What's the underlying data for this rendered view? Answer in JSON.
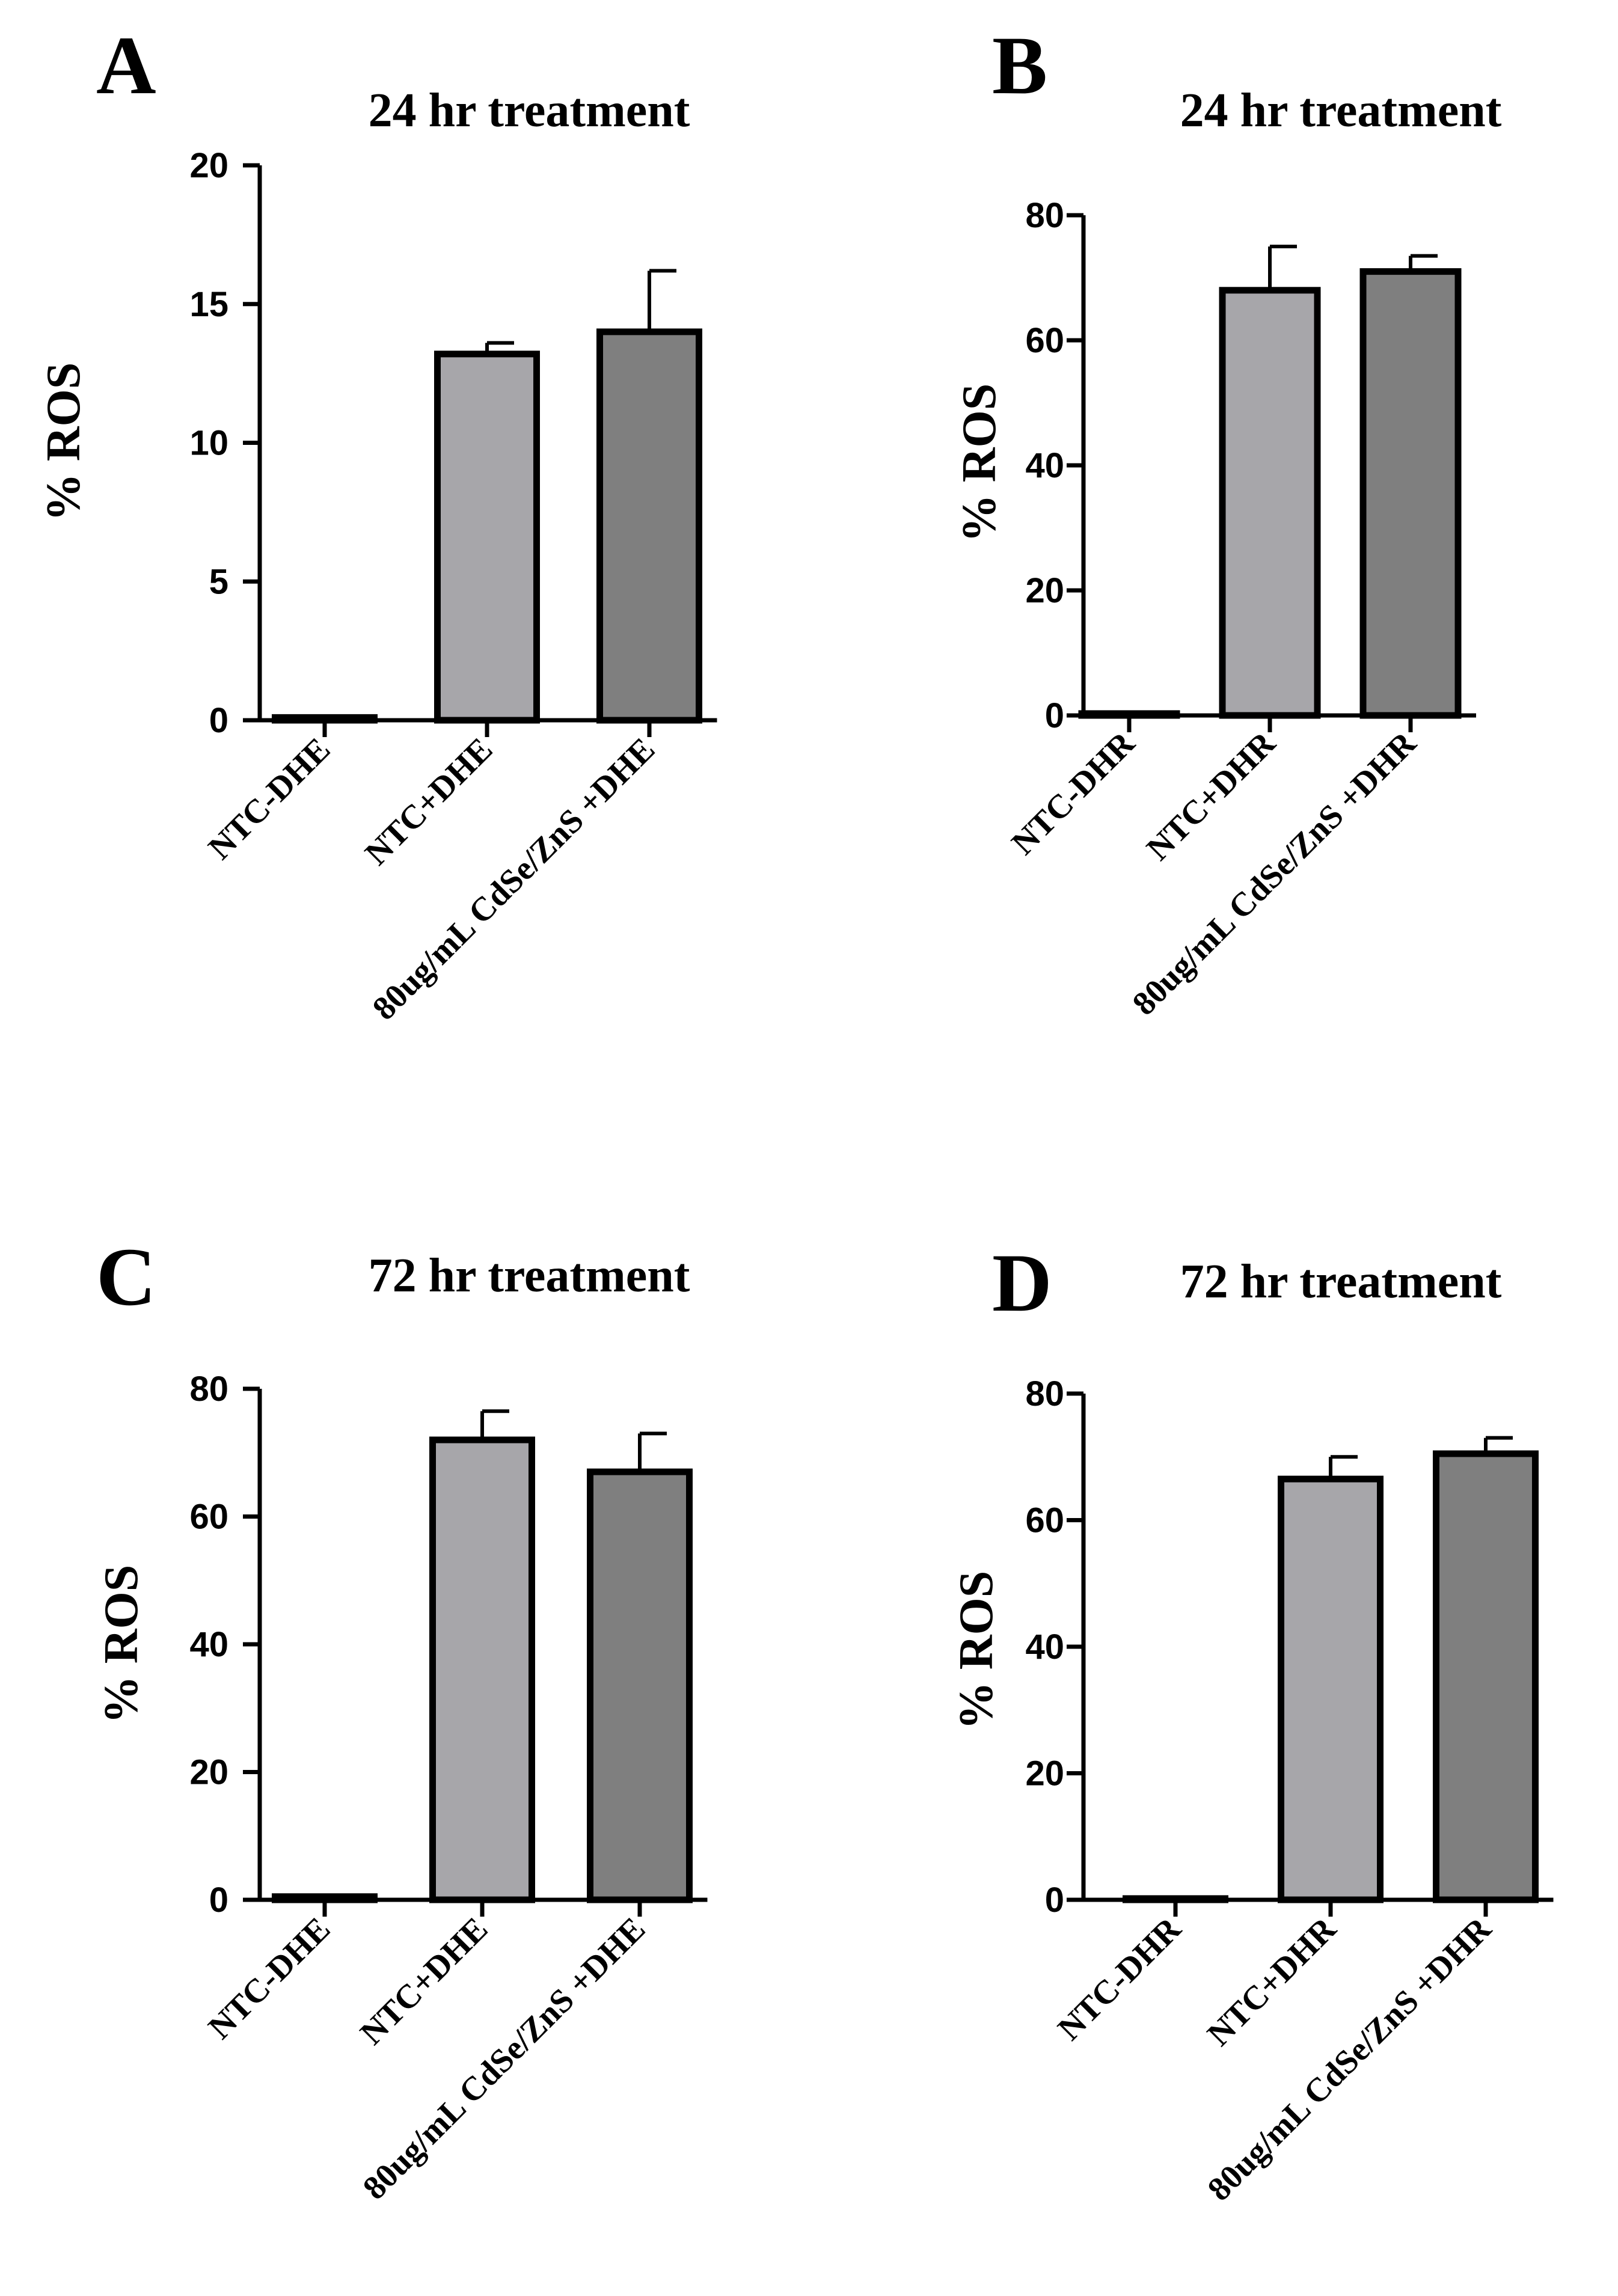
{
  "chart_data": [
    {
      "panel": "A",
      "type": "bar",
      "title": "24 hr treatment",
      "xlabel": "",
      "ylabel": "% ROS",
      "ylim": [
        0,
        20
      ],
      "yticks": [
        0,
        5,
        10,
        15,
        20
      ],
      "tick_labels": [
        "0",
        "5",
        "10",
        "15",
        "20"
      ],
      "categories": [
        "NTC-DHE",
        "NTC+DHE",
        "80ug/mL CdSe/ZnS +DHE"
      ],
      "values": [
        0.1,
        13.2,
        14.0
      ],
      "errors": [
        0.0,
        0.4,
        2.2
      ],
      "colors": [
        "#ffffff",
        "#a7a6aa",
        "#7f7f7f"
      ],
      "grid": false
    },
    {
      "panel": "B",
      "type": "bar",
      "title": "24 hr treatment",
      "xlabel": "",
      "ylabel": "% ROS",
      "ylim": [
        0,
        80
      ],
      "yticks": [
        0,
        20,
        40,
        60,
        80
      ],
      "tick_labels": [
        "0",
        "20",
        "40",
        "60",
        "80"
      ],
      "categories": [
        "NTC-DHR",
        "NTC+DHR",
        "80ug/mL CdSe/ZnS +DHR"
      ],
      "values": [
        0.3,
        68,
        71
      ],
      "errors": [
        0.0,
        7,
        2.5
      ],
      "colors": [
        "#ffffff",
        "#a7a6aa",
        "#7f7f7f"
      ],
      "grid": false
    },
    {
      "panel": "C",
      "type": "bar",
      "title": "72 hr treatment",
      "xlabel": "",
      "ylabel": "% ROS",
      "ylim": [
        0,
        80
      ],
      "yticks": [
        0,
        20,
        40,
        60,
        80
      ],
      "tick_labels": [
        "0",
        "20",
        "40",
        "60",
        "80"
      ],
      "categories": [
        "NTC-DHE",
        "NTC+DHE",
        "80ug/mL CdSe/ZnS +DHE"
      ],
      "values": [
        0.5,
        72,
        67
      ],
      "errors": [
        0.0,
        4.5,
        6
      ],
      "colors": [
        "#ffffff",
        "#a7a6aa",
        "#7f7f7f"
      ],
      "grid": false
    },
    {
      "panel": "D",
      "type": "bar",
      "title": "72 hr treatment",
      "xlabel": "",
      "ylabel": "% ROS",
      "ylim": [
        0,
        80
      ],
      "yticks": [
        0,
        20,
        40,
        60,
        80
      ],
      "tick_labels": [
        "0",
        "20",
        "40",
        "60",
        "80"
      ],
      "categories": [
        "NTC-DHR",
        "NTC+DHR",
        "80ug/mL CdSe/ZnS +DHR"
      ],
      "values": [
        0.2,
        66.5,
        70.5
      ],
      "errors": [
        0.0,
        3.5,
        2.5
      ],
      "colors": [
        "#ffffff",
        "#a7a6aa",
        "#7f7f7f"
      ],
      "grid": false
    }
  ]
}
